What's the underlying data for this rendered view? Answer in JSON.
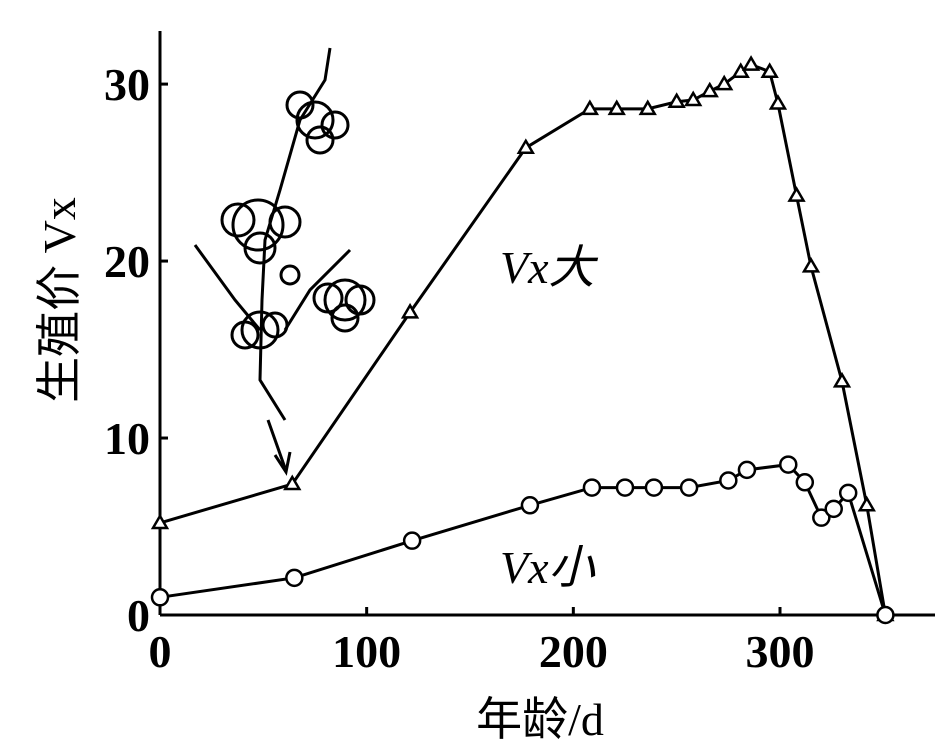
{
  "chart_data": {
    "type": "line",
    "xlabel": "年龄/d",
    "ylabel": "生殖价 Vx",
    "xlim": [
      0,
      375
    ],
    "ylim": [
      0,
      33
    ],
    "xticks": [
      0,
      100,
      200,
      300
    ],
    "yticks": [
      0,
      10,
      20,
      30
    ],
    "series": [
      {
        "name": "Vx大",
        "color": "#000000",
        "marker": "triangle",
        "x": [
          0,
          64,
          121,
          177,
          208,
          221,
          236,
          250,
          258,
          266,
          273,
          281,
          286,
          295,
          299,
          308,
          315,
          330,
          342,
          351
        ],
        "values": [
          5.2,
          7.4,
          17.1,
          26.4,
          28.6,
          28.6,
          28.6,
          29.0,
          29.1,
          29.6,
          30.0,
          30.7,
          31.1,
          30.7,
          28.9,
          23.7,
          19.7,
          13.2,
          6.2,
          0
        ]
      },
      {
        "name": "Vx小",
        "color": "#000000",
        "marker": "circle",
        "x": [
          0,
          65,
          122,
          179,
          209,
          225,
          239,
          256,
          275,
          284,
          304,
          312,
          320,
          326,
          333,
          351
        ],
        "values": [
          1.0,
          2.1,
          4.2,
          6.2,
          7.2,
          7.2,
          7.2,
          7.2,
          7.6,
          8.2,
          8.5,
          7.5,
          5.5,
          6.0,
          6.9,
          0
        ]
      }
    ]
  }
}
